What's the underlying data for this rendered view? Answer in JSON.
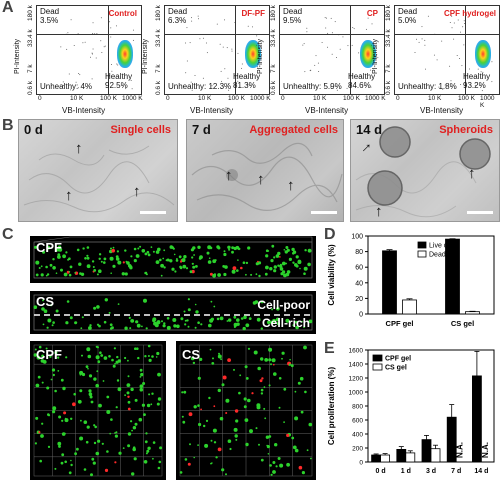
{
  "panel_letters": [
    "A",
    "B",
    "C",
    "D",
    "E"
  ],
  "panel_a": {
    "y_axis_title": "PI-Intensity",
    "x_axis_title": "VB-Intensity",
    "x_ticks": [
      "0",
      "10 K",
      "100 K",
      "1000 K"
    ],
    "y_ticks": [
      "0.6 k",
      "7 k",
      "33.4 k",
      "180 k"
    ],
    "plots": [
      {
        "condition": "Control",
        "dead_label": "Dead",
        "dead_pct": "3.5%",
        "unhealthy": "Unhealthy: 4%",
        "healthy_label": "Healthy",
        "healthy_pct": "92.5%"
      },
      {
        "condition": "DF-PF",
        "dead_label": "Dead",
        "dead_pct": "6.3%",
        "unhealthy": "Unhealthy: 12.3%",
        "healthy_label": "Healthy",
        "healthy_pct": "81.3%"
      },
      {
        "condition": "CP",
        "dead_label": "Dead",
        "dead_pct": "9.5%",
        "unhealthy": "Unhealthy: 5.9%",
        "healthy_label": "Healthy",
        "healthy_pct": "84.6%"
      },
      {
        "condition": "CPF hydrogel",
        "dead_label": "Dead",
        "dead_pct": "5.0%",
        "unhealthy": "Unhealthy: 1.8%",
        "healthy_label": "Healthy",
        "healthy_pct": "93.2%"
      }
    ]
  },
  "panel_b": {
    "images": [
      {
        "day": "0 d",
        "caption": "Single cells"
      },
      {
        "day": "7 d",
        "caption": "Aggregated cells"
      },
      {
        "day": "14 d",
        "caption": "Spheroids"
      }
    ]
  },
  "panel_c": {
    "top_labels": [
      "CPF",
      "CS"
    ],
    "cell_poor": "Cell-poor",
    "cell_rich": "Cell-rich",
    "bottom_labels": [
      "CPF",
      "CS"
    ]
  },
  "chart_data": [
    {
      "type": "bar",
      "panel": "D",
      "categories": [
        "CPF gel",
        "CS gel"
      ],
      "series": [
        {
          "name": "Live cell",
          "values": [
            81,
            96
          ],
          "errors": [
            1.5,
            0.5
          ],
          "color": "#000000"
        },
        {
          "name": "Dead cell",
          "values": [
            18,
            3
          ],
          "errors": [
            1.5,
            0.5
          ],
          "color": "#ffffff"
        }
      ],
      "ylabel": "Cell viability (%)",
      "yticks": [
        0,
        20,
        40,
        60,
        80,
        100
      ],
      "ylim": [
        0,
        100
      ],
      "legend": "top-right"
    },
    {
      "type": "bar",
      "panel": "E",
      "categories": [
        "0 d",
        "1 d",
        "3 d",
        "7 d",
        "14 d"
      ],
      "series": [
        {
          "name": "CPF gel",
          "values": [
            100,
            180,
            320,
            640,
            1230
          ],
          "errors": [
            15,
            40,
            60,
            180,
            350
          ],
          "color": "#000000"
        },
        {
          "name": "CS gel",
          "values": [
            100,
            130,
            190,
            null,
            null
          ],
          "errors": [
            20,
            30,
            50,
            null,
            null
          ],
          "color": "#ffffff"
        }
      ],
      "na_label": "N.A.",
      "ylabel": "Cell proliferation (%)",
      "yticks": [
        0,
        200,
        400,
        600,
        800,
        1000,
        1200,
        1400,
        1600
      ],
      "ylim": [
        0,
        1600
      ],
      "legend": "top-left"
    }
  ]
}
